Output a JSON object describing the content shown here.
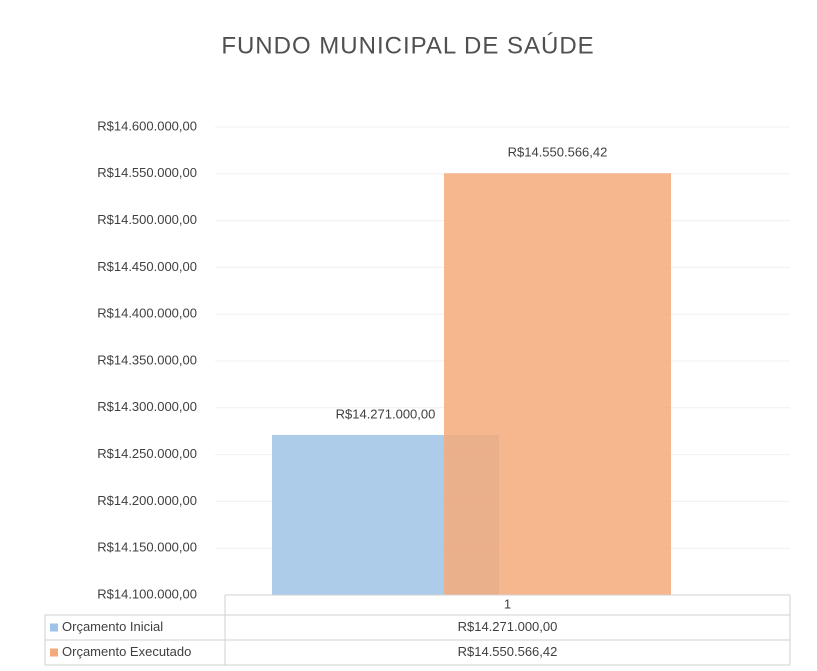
{
  "chart_data": {
    "type": "bar",
    "title": "FUNDO MUNICIPAL DE SAÚDE",
    "categories": [
      "1"
    ],
    "series": [
      {
        "name": "Orçamento Inicial",
        "color": "#9dc3e6",
        "values": [
          14271000
        ],
        "value_labels": [
          "R$14.271.000,00"
        ]
      },
      {
        "name": "Orçamento Executado",
        "color": "#f4a97a",
        "values": [
          14550566.42
        ],
        "value_labels": [
          "R$14.550.566,42"
        ]
      }
    ],
    "ylim": [
      14100000,
      14600000
    ],
    "yticks": [
      {
        "value": 14100000,
        "label": "R$14.100.000,00"
      },
      {
        "value": 14150000,
        "label": "R$14.150.000,00"
      },
      {
        "value": 14200000,
        "label": "R$14.200.000,00"
      },
      {
        "value": 14250000,
        "label": "R$14.250.000,00"
      },
      {
        "value": 14300000,
        "label": "R$14.300.000,00"
      },
      {
        "value": 14350000,
        "label": "R$14.350.000,00"
      },
      {
        "value": 14400000,
        "label": "R$14.400.000,00"
      },
      {
        "value": 14450000,
        "label": "R$14.450.000,00"
      },
      {
        "value": 14500000,
        "label": "R$14.500.000,00"
      },
      {
        "value": 14550000,
        "label": "R$14.550.000,00"
      },
      {
        "value": 14600000,
        "label": "R$14.600.000,00"
      }
    ],
    "grid": true,
    "legend": "bottom"
  }
}
